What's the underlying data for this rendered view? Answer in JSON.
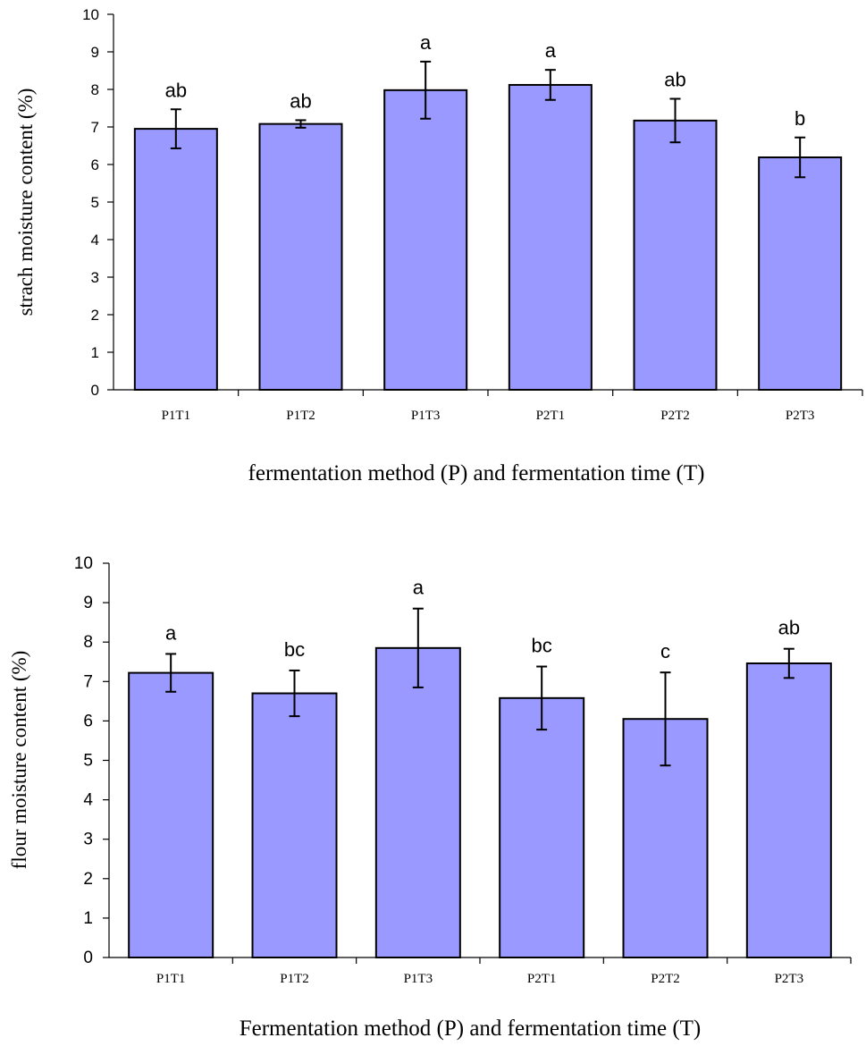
{
  "chart_data": [
    {
      "type": "bar",
      "title": "",
      "categories": [
        "P1T1",
        "P1T2",
        "P1T3",
        "P2T1",
        "P2T2",
        "P2T3"
      ],
      "values": [
        6.95,
        7.08,
        7.98,
        8.12,
        7.17,
        6.19
      ],
      "errors": [
        0.52,
        0.1,
        0.76,
        0.4,
        0.58,
        0.53
      ],
      "annotations": [
        "ab",
        "ab",
        "a",
        "a",
        "ab",
        "b"
      ],
      "xlabel": "fermentation method (P) and fermentation time (T)",
      "ylabel": "strach moisture content  (%)",
      "ylim": [
        0,
        10
      ],
      "yticks": [
        0,
        1,
        2,
        3,
        4,
        5,
        6,
        7,
        8,
        9,
        10
      ],
      "grid": false,
      "bar_color": "#9999ff"
    },
    {
      "type": "bar",
      "title": "",
      "categories": [
        "P1T1",
        "P1T2",
        "P1T3",
        "P2T1",
        "P2T2",
        "P2T3"
      ],
      "values": [
        7.22,
        6.7,
        7.85,
        6.58,
        6.05,
        7.46
      ],
      "errors": [
        0.48,
        0.58,
        1.0,
        0.8,
        1.18,
        0.37
      ],
      "annotations": [
        "a",
        "bc",
        "a",
        "bc",
        "c",
        "ab"
      ],
      "xlabel": "Fermentation method (P) and fermentation time (T)",
      "ylabel": "flour moisture content (%)",
      "ylim": [
        0,
        10
      ],
      "yticks": [
        0,
        1,
        2,
        3,
        4,
        5,
        6,
        7,
        8,
        9,
        10
      ],
      "grid": false,
      "bar_color": "#9999ff"
    }
  ]
}
